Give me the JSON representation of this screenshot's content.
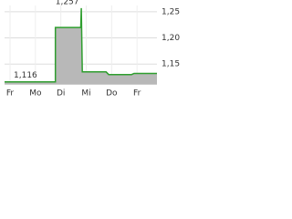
{
  "chart_data": {
    "type": "area",
    "color": "#2e9e2e",
    "fill": "#b8b8b8",
    "x": [
      0,
      2,
      2,
      3,
      3.02,
      3.06,
      4,
      4.1,
      5,
      5.1,
      6
    ],
    "values": [
      1.116,
      1.116,
      1.22,
      1.22,
      1.257,
      1.135,
      1.135,
      1.13,
      1.13,
      1.132,
      1.132
    ],
    "xlim": [
      0,
      6
    ],
    "xticks": [
      {
        "value": 0,
        "label": "Fr"
      },
      {
        "value": 1,
        "label": "Mo"
      },
      {
        "value": 2,
        "label": "Di"
      },
      {
        "value": 3,
        "label": "Mi"
      },
      {
        "value": 4,
        "label": "Do"
      },
      {
        "value": 5,
        "label": "Fr"
      }
    ],
    "ylim": [
      1.112,
      1.262
    ],
    "yticks": [
      {
        "value": 1.15,
        "label": "1,15"
      },
      {
        "value": 1.2,
        "label": "1,20"
      },
      {
        "value": 1.25,
        "label": "1,25"
      }
    ],
    "grid": true,
    "annotations": [
      {
        "text": "1,257",
        "x": 3,
        "y": 1.257
      },
      {
        "text": "1,116",
        "x": 0,
        "y": 1.116
      }
    ]
  }
}
